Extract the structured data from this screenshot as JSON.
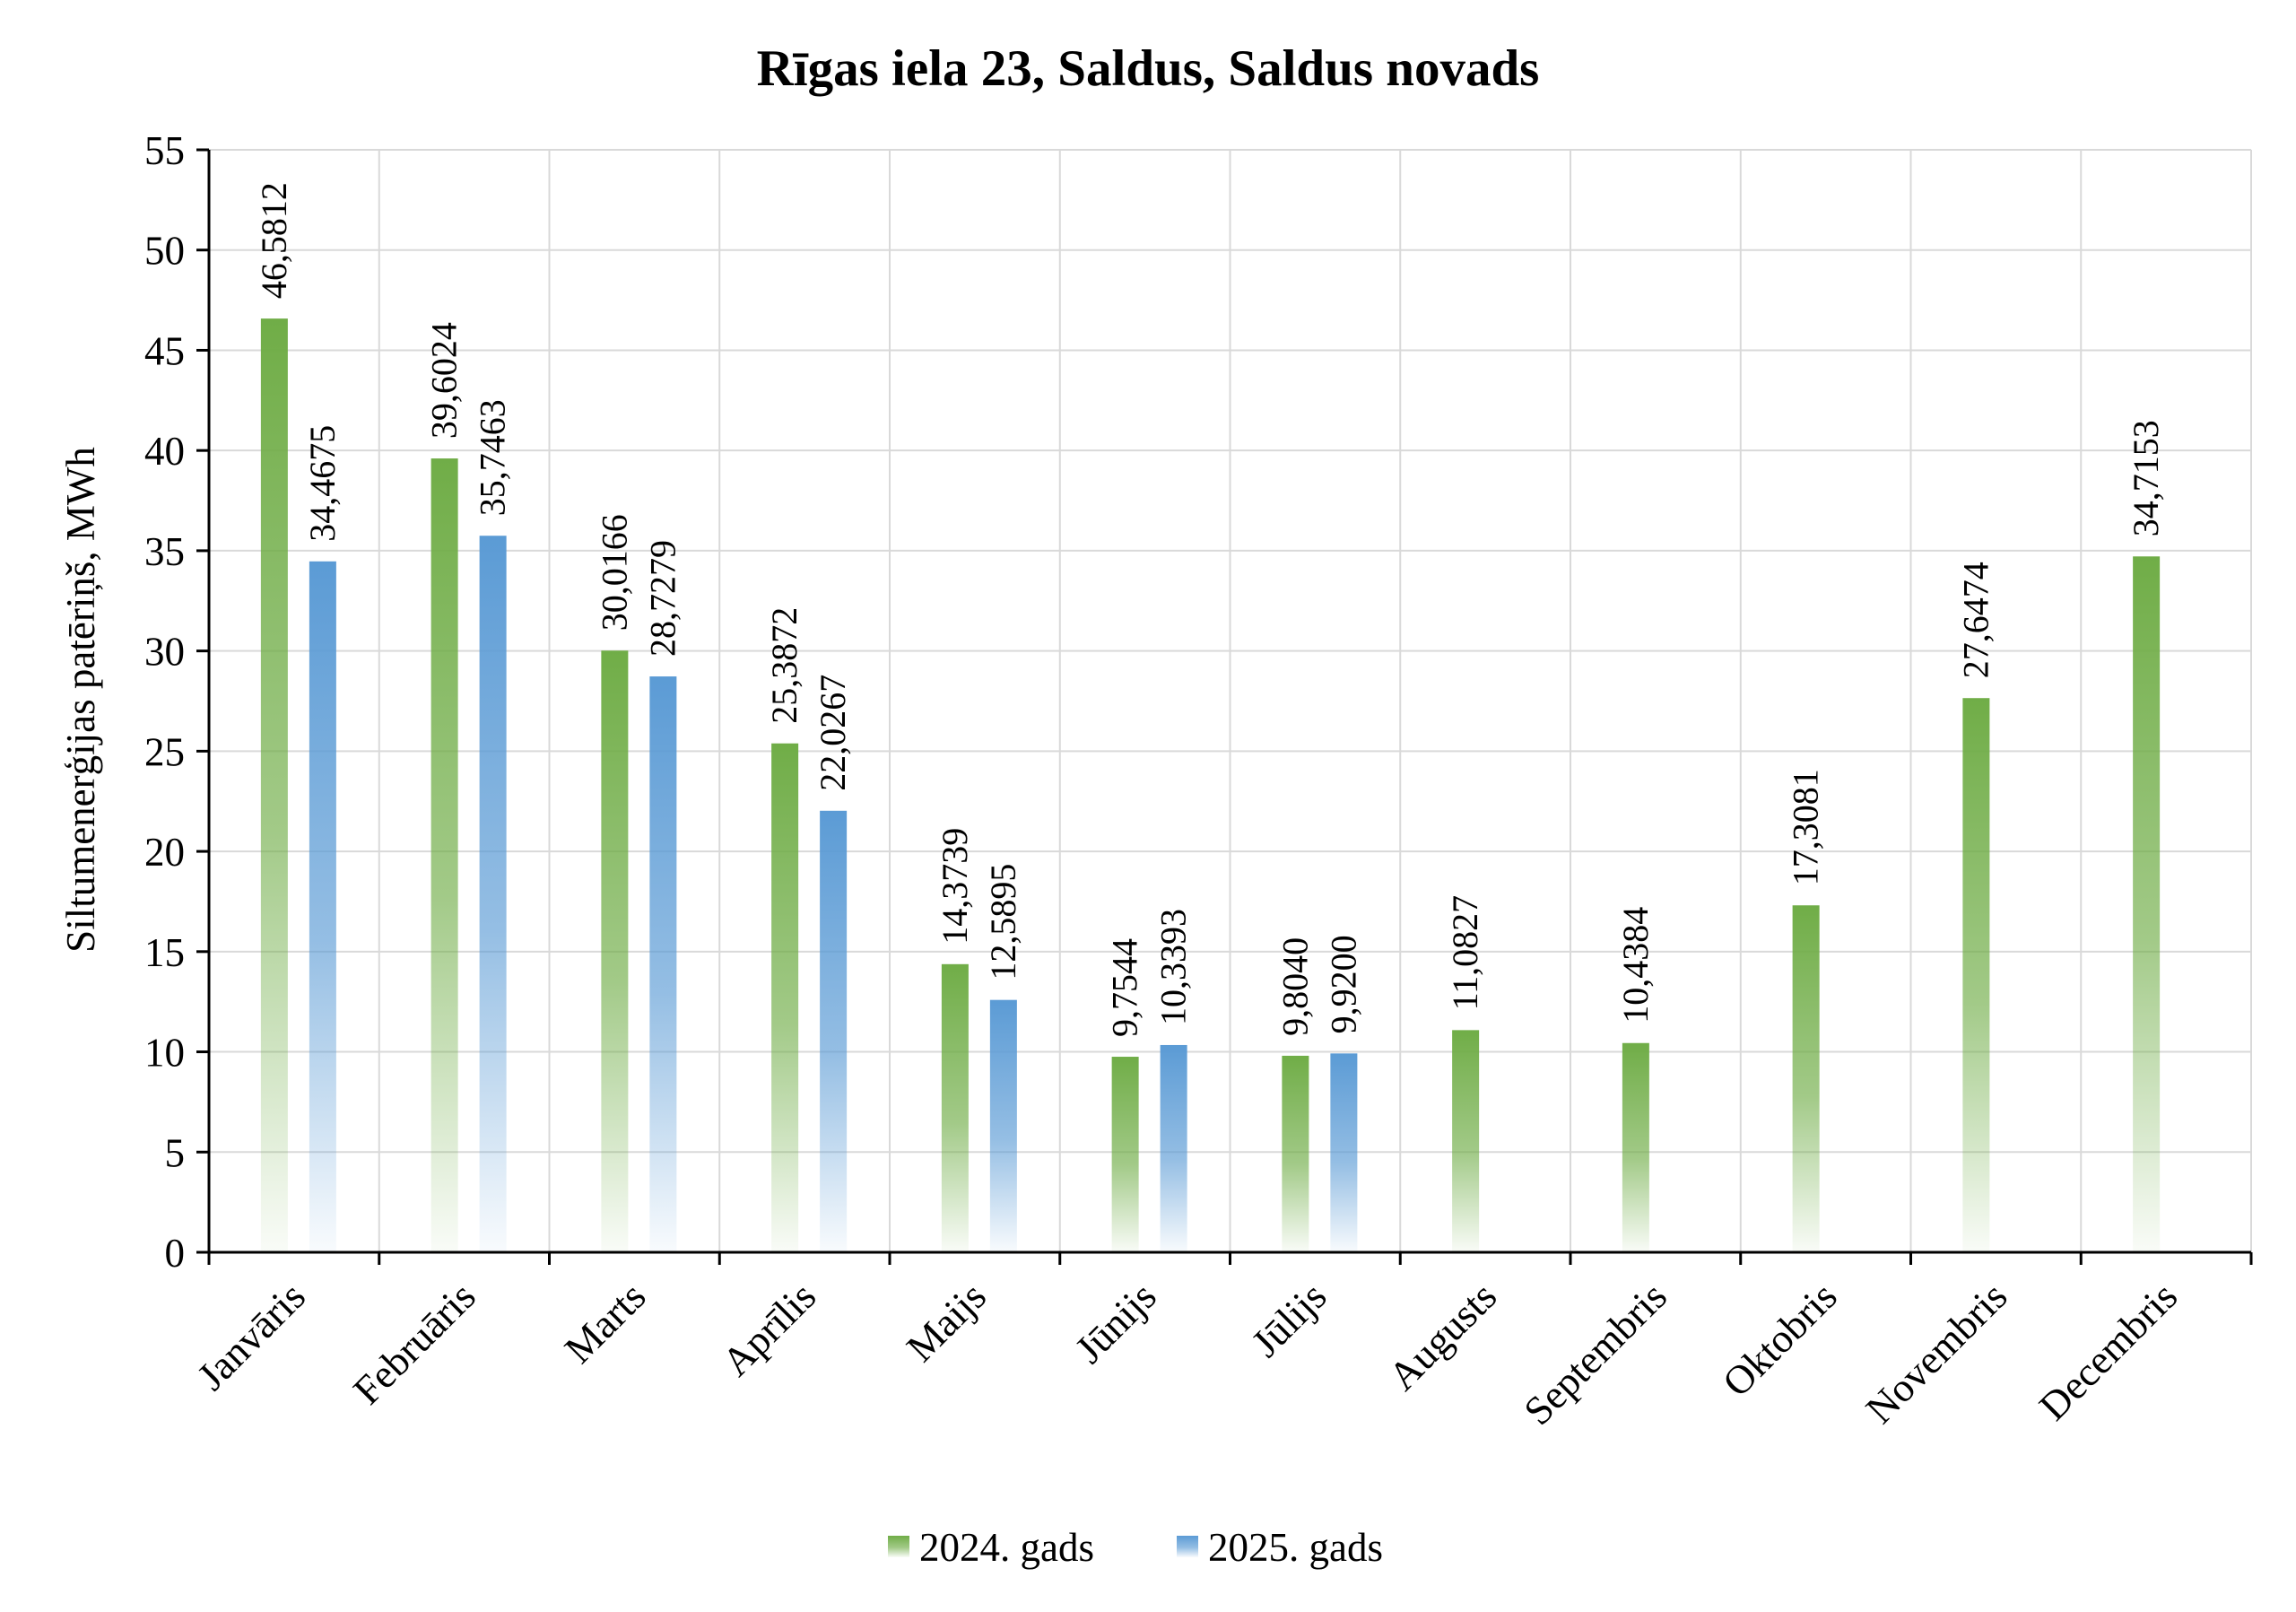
{
  "chart_data": {
    "type": "bar",
    "title": "Rīgas iela 23, Saldus, Saldus novads",
    "xlabel": "",
    "ylabel": "Siltumenerģijas patēriņš, MWh",
    "ylim": [
      0,
      55
    ],
    "yticks": [
      0,
      5,
      10,
      15,
      20,
      25,
      30,
      35,
      40,
      45,
      50,
      55
    ],
    "grid": true,
    "legend_position": "bottom",
    "categories": [
      "Janvāris",
      "Februāris",
      "Marts",
      "Aprīlis",
      "Maijs",
      "Jūnijs",
      "Jūlijs",
      "Augusts",
      "Septembris",
      "Oktobris",
      "Novembris",
      "Decembris"
    ],
    "series": [
      {
        "name": "2024. gads",
        "color": "#70ad47",
        "values": [
          46.5812,
          39.6024,
          30.0166,
          25.3872,
          14.3739,
          9.7544,
          9.804,
          11.0827,
          10.4384,
          17.3081,
          27.6474,
          34.7153
        ],
        "labels": [
          "46,5812",
          "39,6024",
          "30,0166",
          "25,3872",
          "14,3739",
          "9,7544",
          "9,8040",
          "11,0827",
          "10,4384",
          "17,3081",
          "27,6474",
          "34,7153"
        ]
      },
      {
        "name": "2025. gads",
        "color": "#5b9bd5",
        "values": [
          34.4675,
          35.7463,
          28.7279,
          22.0267,
          12.5895,
          10.3393,
          9.92,
          null,
          null,
          null,
          null,
          null
        ],
        "labels": [
          "34,4675",
          "35,7463",
          "28,7279",
          "22,0267",
          "12,5895",
          "10,3393",
          "9,9200",
          null,
          null,
          null,
          null,
          null
        ]
      }
    ]
  }
}
